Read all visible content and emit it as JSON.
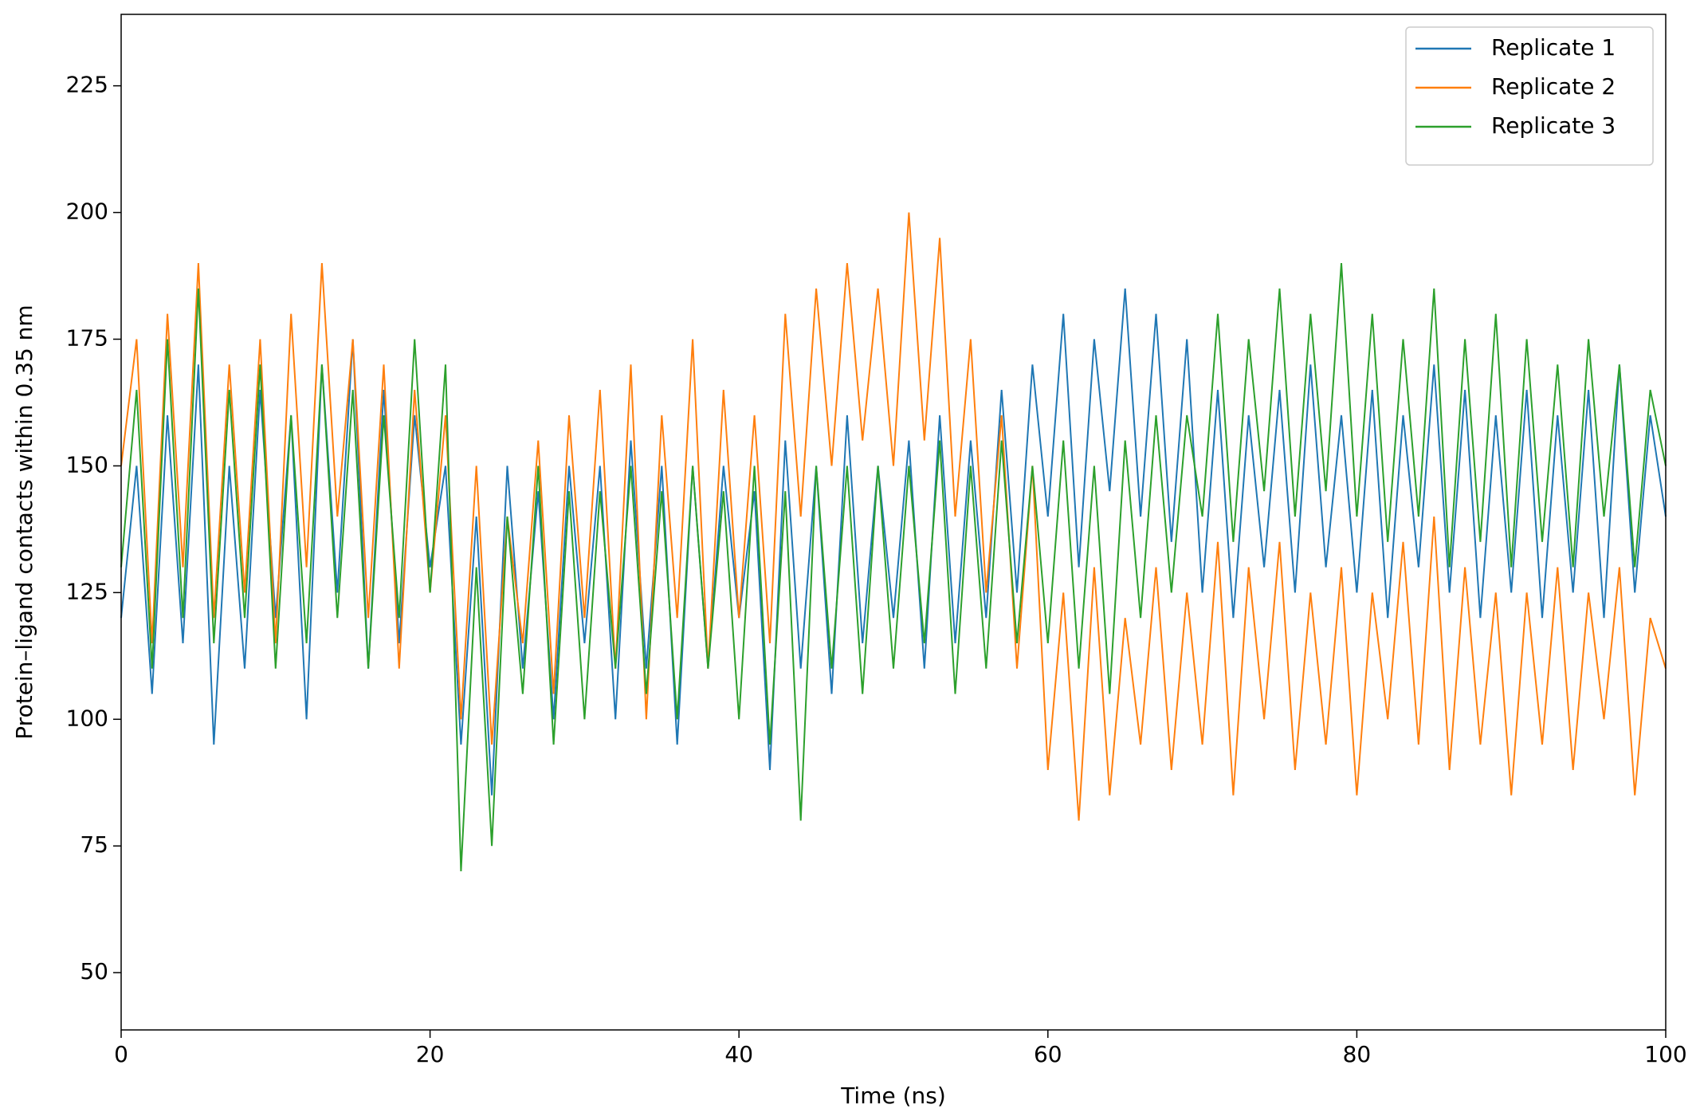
{
  "chart_data": {
    "type": "line",
    "xlabel": "Time (ns)",
    "ylabel": "Protein–ligand contacts within 0.35 nm",
    "x": [
      0,
      1,
      2,
      3,
      4,
      5,
      6,
      7,
      8,
      9,
      10,
      11,
      12,
      13,
      14,
      15,
      16,
      17,
      18,
      19,
      20,
      21,
      22,
      23,
      24,
      25,
      26,
      27,
      28,
      29,
      30,
      31,
      32,
      33,
      34,
      35,
      36,
      37,
      38,
      39,
      40,
      41,
      42,
      43,
      44,
      45,
      46,
      47,
      48,
      49,
      50,
      51,
      52,
      53,
      54,
      55,
      56,
      57,
      58,
      59,
      60,
      61,
      62,
      63,
      64,
      65,
      66,
      67,
      68,
      69,
      70,
      71,
      72,
      73,
      74,
      75,
      76,
      77,
      78,
      79,
      80,
      81,
      82,
      83,
      84,
      85,
      86,
      87,
      88,
      89,
      90,
      91,
      92,
      93,
      94,
      95,
      96,
      97,
      98,
      99,
      100
    ],
    "series": [
      {
        "name": "Replicate 1",
        "color": "#1f77b4",
        "values": [
          120,
          150,
          105,
          160,
          115,
          170,
          95,
          150,
          110,
          165,
          120,
          160,
          100,
          170,
          125,
          175,
          110,
          165,
          115,
          160,
          130,
          150,
          95,
          140,
          85,
          150,
          110,
          145,
          100,
          150,
          115,
          150,
          100,
          155,
          110,
          150,
          95,
          150,
          110,
          150,
          120,
          145,
          90,
          155,
          110,
          150,
          105,
          160,
          115,
          150,
          120,
          155,
          110,
          160,
          115,
          155,
          120,
          165,
          125,
          170,
          140,
          180,
          130,
          175,
          145,
          185,
          140,
          180,
          135,
          175,
          125,
          165,
          120,
          160,
          130,
          165,
          125,
          170,
          130,
          160,
          125,
          165,
          120,
          160,
          130,
          170,
          125,
          165,
          120,
          160,
          125,
          165,
          120,
          160,
          125,
          165,
          120,
          170,
          125,
          160,
          140
        ]
      },
      {
        "name": "Replicate 2",
        "color": "#ff7f0e",
        "values": [
          150,
          175,
          115,
          180,
          130,
          190,
          120,
          170,
          125,
          175,
          115,
          180,
          130,
          190,
          140,
          175,
          120,
          170,
          110,
          165,
          125,
          160,
          100,
          150,
          95,
          140,
          115,
          155,
          105,
          160,
          120,
          165,
          110,
          170,
          100,
          160,
          120,
          175,
          110,
          165,
          120,
          160,
          115,
          180,
          140,
          185,
          150,
          190,
          155,
          185,
          150,
          200,
          155,
          195,
          140,
          175,
          125,
          160,
          110,
          150,
          90,
          125,
          80,
          130,
          85,
          120,
          95,
          130,
          90,
          125,
          95,
          135,
          85,
          130,
          100,
          135,
          90,
          125,
          95,
          130,
          85,
          125,
          100,
          135,
          95,
          140,
          90,
          130,
          95,
          125,
          85,
          125,
          95,
          130,
          90,
          125,
          100,
          130,
          85,
          120,
          110
        ]
      },
      {
        "name": "Replicate 3",
        "color": "#2ca02c",
        "values": [
          130,
          165,
          110,
          175,
          120,
          185,
          115,
          165,
          120,
          170,
          110,
          160,
          115,
          170,
          120,
          165,
          110,
          160,
          120,
          175,
          125,
          170,
          70,
          130,
          75,
          140,
          105,
          150,
          95,
          145,
          100,
          145,
          110,
          150,
          105,
          145,
          100,
          150,
          110,
          145,
          100,
          150,
          95,
          145,
          80,
          150,
          110,
          150,
          105,
          150,
          110,
          150,
          115,
          155,
          105,
          150,
          110,
          155,
          115,
          150,
          115,
          155,
          110,
          150,
          105,
          155,
          120,
          160,
          125,
          160,
          140,
          180,
          135,
          175,
          145,
          185,
          140,
          180,
          145,
          190,
          140,
          180,
          135,
          175,
          140,
          185,
          130,
          175,
          135,
          180,
          130,
          175,
          135,
          170,
          130,
          175,
          140,
          170,
          130,
          165,
          150
        ]
      }
    ],
    "xlim": [
      0,
      100
    ],
    "xticks": [
      0,
      20,
      40,
      60,
      80,
      100
    ],
    "ylim": [
      38.7,
      239.1
    ],
    "yticks": [
      50,
      75,
      100,
      125,
      150,
      175,
      200,
      225
    ],
    "legend": "upper right"
  }
}
